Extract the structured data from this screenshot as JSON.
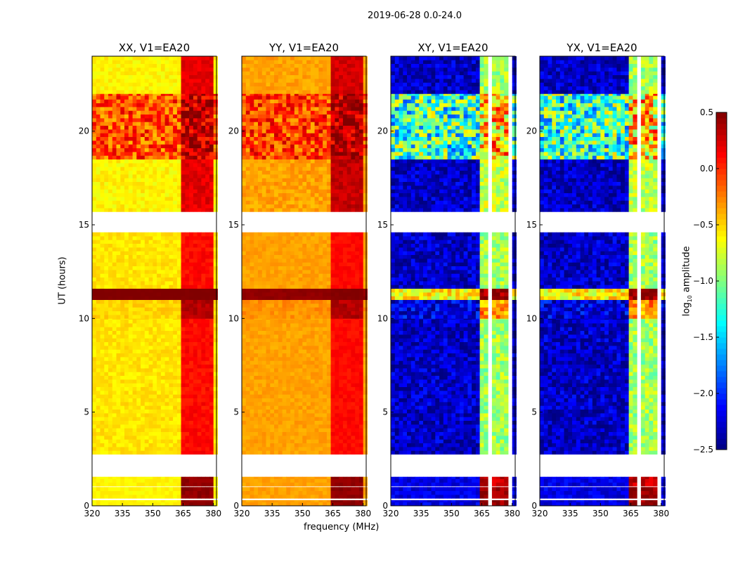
{
  "chart_data": {
    "type": "heatmap",
    "title": "2019-06-28 0.0-24.0",
    "xlabel": "frequency (MHz)",
    "ylabel": "UT (hours)",
    "xlim": [
      320,
      381.5
    ],
    "ylim": [
      0,
      24
    ],
    "xticks": [
      "320",
      "335",
      "350",
      "365",
      "380"
    ],
    "yticks": [
      "0",
      "5",
      "10",
      "15",
      "20"
    ],
    "rfi_band_mhz": [
      363,
      380
    ],
    "flagged_hours": [
      [
        0.3,
        0.4
      ],
      [
        1.0,
        1.05
      ],
      [
        1.55,
        2.75
      ],
      [
        14.6,
        15.7
      ]
    ],
    "colorbar": {
      "label": "log10 amplitude",
      "label_main": "log",
      "label_sub": "10",
      "label_rest": " amplitude",
      "range": [
        -2.5,
        0.5
      ],
      "ticks": [
        "0.5",
        "0.0",
        "−0.5",
        "−1.0",
        "−1.5",
        "−2.0",
        "−2.5"
      ]
    },
    "panels": [
      {
        "title": "XX, V1=EA20",
        "rows": [
          [
            0,
            0.3,
            -0.6,
            0.45,
            0.05
          ],
          [
            0.4,
            1.0,
            -0.6,
            0.45,
            0.05
          ],
          [
            1.05,
            1.55,
            -0.6,
            0.45,
            0.05
          ],
          [
            2.75,
            10,
            -0.55,
            0.1,
            0.08
          ],
          [
            10,
            11,
            -0.5,
            0.35,
            0.08
          ],
          [
            11,
            11.6,
            0.5,
            0.5,
            0.02
          ],
          [
            11.6,
            14.6,
            -0.55,
            0.1,
            0.08
          ],
          [
            15.7,
            18.5,
            -0.6,
            0.2,
            0.1
          ],
          [
            18.5,
            22,
            -0.1,
            0.3,
            0.35
          ],
          [
            22,
            24,
            -0.6,
            0.2,
            0.08
          ]
        ]
      },
      {
        "title": "YY, V1=EA20",
        "rows": [
          [
            0,
            0.3,
            -0.35,
            0.45,
            0.05
          ],
          [
            0.4,
            1.0,
            -0.35,
            0.45,
            0.05
          ],
          [
            1.05,
            1.55,
            -0.35,
            0.45,
            0.05
          ],
          [
            2.75,
            10,
            -0.35,
            0.1,
            0.06
          ],
          [
            10,
            11,
            -0.3,
            0.35,
            0.08
          ],
          [
            11,
            11.6,
            0.45,
            0.5,
            0.03
          ],
          [
            11.6,
            14.6,
            -0.35,
            0.1,
            0.06
          ],
          [
            15.7,
            18.5,
            -0.35,
            0.3,
            0.1
          ],
          [
            18.5,
            22,
            -0.05,
            0.35,
            0.35
          ],
          [
            22,
            24,
            -0.35,
            0.25,
            0.08
          ]
        ]
      },
      {
        "title": "XY, V1=EA20",
        "rows": [
          [
            0,
            0.3,
            -2.2,
            0.45,
            0.15
          ],
          [
            0.4,
            1.0,
            -2.2,
            0.45,
            0.15
          ],
          [
            1.05,
            1.55,
            -2.2,
            0.3,
            0.15
          ],
          [
            2.75,
            10,
            -2.3,
            -0.9,
            0.25
          ],
          [
            10,
            11,
            -2.2,
            -0.3,
            0.3
          ],
          [
            11,
            11.6,
            -0.6,
            0.5,
            0.3
          ],
          [
            11.6,
            14.6,
            -2.3,
            -0.9,
            0.25
          ],
          [
            15.7,
            18.5,
            -2.3,
            -0.8,
            0.25
          ],
          [
            18.5,
            22,
            -1.2,
            -0.5,
            0.7
          ],
          [
            22,
            24,
            -2.3,
            -0.9,
            0.25
          ]
        ]
      },
      {
        "title": "YX, V1=EA20",
        "rows": [
          [
            0,
            0.3,
            -2.2,
            0.45,
            0.15
          ],
          [
            0.4,
            1.0,
            -2.2,
            0.45,
            0.15
          ],
          [
            1.05,
            1.55,
            -2.2,
            0.3,
            0.15
          ],
          [
            2.75,
            10,
            -2.3,
            -0.9,
            0.25
          ],
          [
            10,
            11,
            -2.2,
            -0.3,
            0.3
          ],
          [
            11,
            11.6,
            -0.6,
            0.5,
            0.3
          ],
          [
            11.6,
            14.6,
            -2.3,
            -0.9,
            0.25
          ],
          [
            15.7,
            18.5,
            -2.3,
            -0.8,
            0.25
          ],
          [
            18.5,
            22,
            -1.2,
            -0.5,
            0.7
          ],
          [
            22,
            24,
            -2.3,
            -0.9,
            0.25
          ]
        ]
      }
    ]
  }
}
